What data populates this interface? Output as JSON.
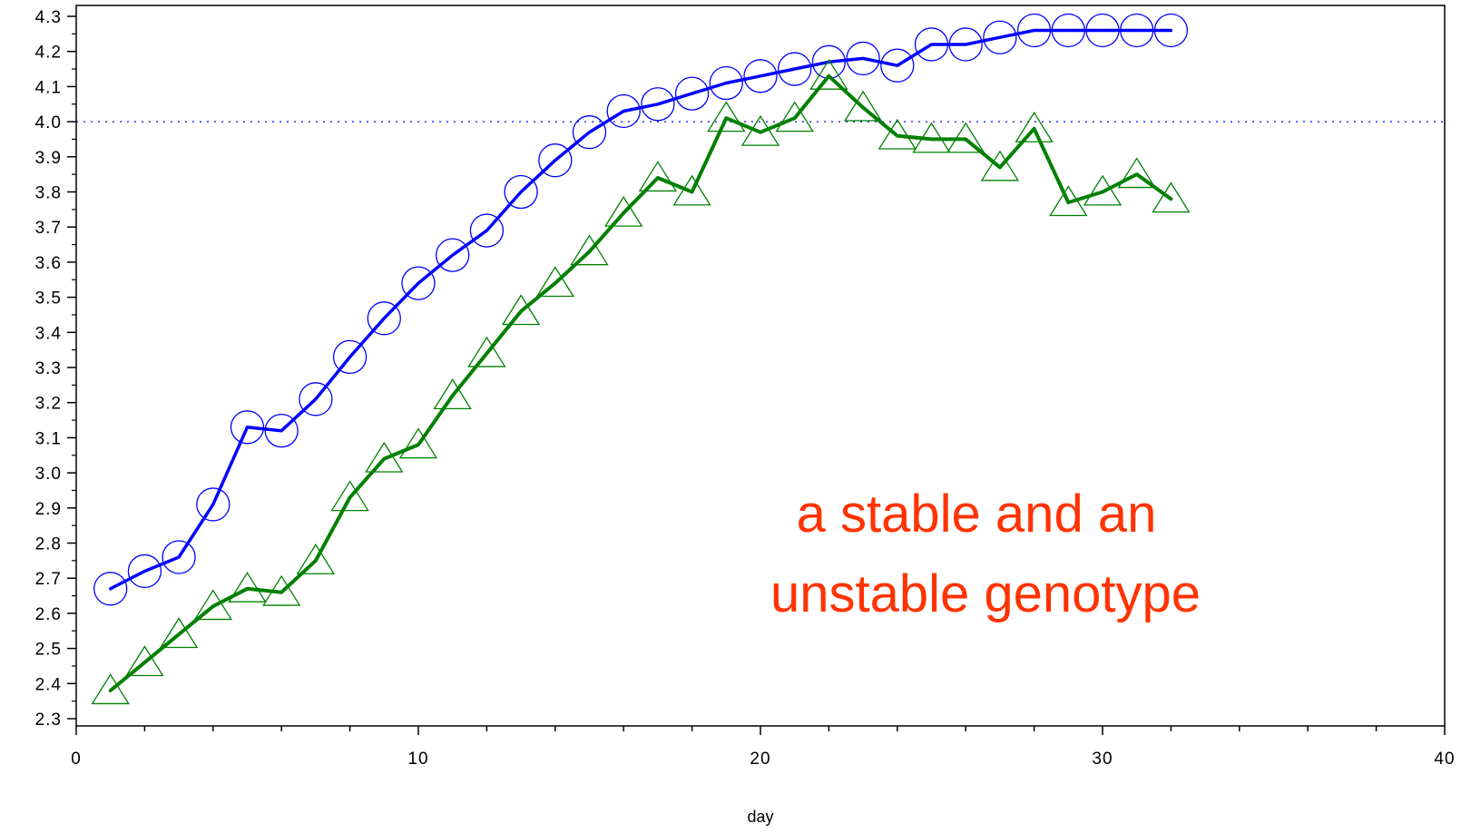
{
  "chart_data": {
    "type": "line",
    "xlabel": "day",
    "ylabel": "",
    "xlim": [
      0,
      40
    ],
    "ylim": [
      2.3,
      4.3
    ],
    "x_ticks": [
      "0",
      "10",
      "20",
      "30",
      "40"
    ],
    "y_ticks": [
      "2.3",
      "2.4",
      "2.5",
      "2.6",
      "2.7",
      "2.8",
      "2.9",
      "3.0",
      "3.1",
      "3.2",
      "3.3",
      "3.4",
      "3.5",
      "3.6",
      "3.7",
      "3.8",
      "3.9",
      "4.0",
      "4.1",
      "4.2",
      "4.3"
    ],
    "reference_line": {
      "y": 4.0,
      "style": "dotted",
      "color": "#0000ff"
    },
    "annotation": [
      "a stable and an",
      "unstable genotype"
    ],
    "annotation_color": "#ff3300",
    "series": [
      {
        "marker": "circle",
        "color": "#0000ff",
        "x": [
          1,
          2,
          3,
          4,
          5,
          6,
          7,
          8,
          9,
          10,
          11,
          12,
          13,
          14,
          15,
          16,
          17,
          18,
          19,
          20,
          21,
          22,
          23,
          24,
          25,
          26,
          27,
          28,
          29,
          30,
          31,
          32
        ],
        "values": [
          2.67,
          2.72,
          2.76,
          2.91,
          3.13,
          3.12,
          3.21,
          3.33,
          3.44,
          3.54,
          3.62,
          3.69,
          3.8,
          3.89,
          3.97,
          4.03,
          4.05,
          4.08,
          4.11,
          4.13,
          4.15,
          4.17,
          4.18,
          4.16,
          4.22,
          4.22,
          4.24,
          4.26,
          4.26,
          4.26,
          4.26,
          4.26
        ]
      },
      {
        "marker": "triangle",
        "color": "#008000",
        "x": [
          1,
          2,
          3,
          4,
          5,
          6,
          7,
          8,
          9,
          10,
          11,
          12,
          13,
          14,
          15,
          16,
          17,
          18,
          19,
          20,
          21,
          22,
          23,
          24,
          25,
          26,
          27,
          28,
          29,
          30,
          31,
          32
        ],
        "values": [
          2.38,
          2.46,
          2.54,
          2.62,
          2.67,
          2.66,
          2.75,
          2.93,
          3.04,
          3.08,
          3.22,
          3.34,
          3.46,
          3.54,
          3.63,
          3.74,
          3.84,
          3.8,
          4.01,
          3.97,
          4.01,
          4.13,
          4.04,
          3.96,
          3.95,
          3.95,
          3.87,
          3.98,
          3.77,
          3.8,
          3.85,
          3.78
        ]
      }
    ]
  }
}
